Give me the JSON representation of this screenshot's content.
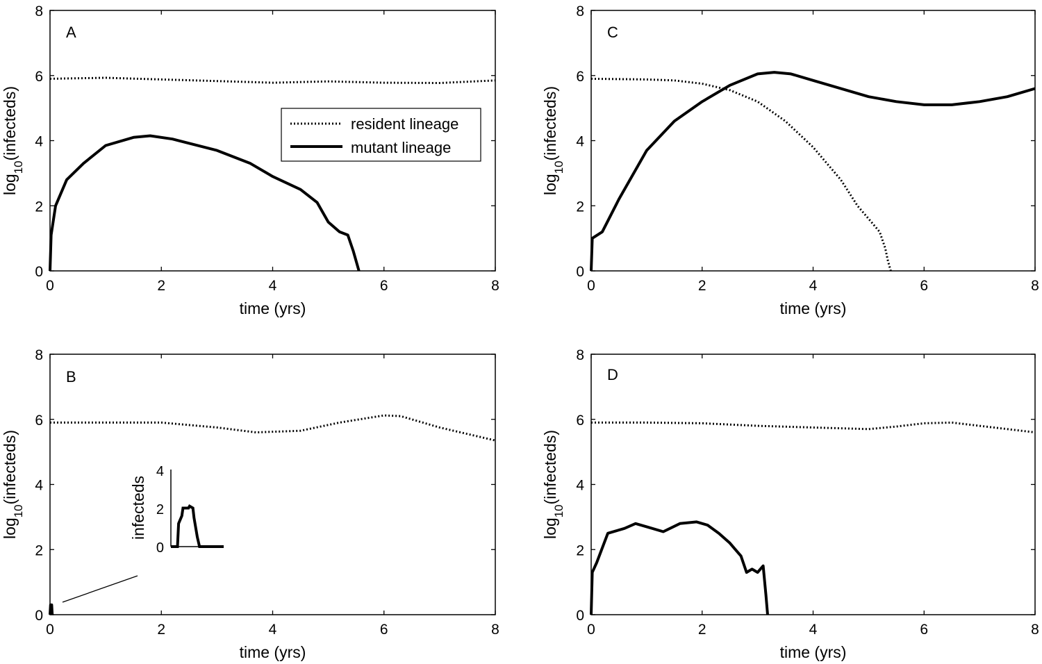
{
  "figure": {
    "legend": {
      "resident": "resident lineage",
      "mutant": "mutant lineage"
    },
    "inset": {
      "ylabel": "infecteds",
      "yticks": [
        "0",
        "2",
        "4"
      ]
    }
  },
  "chart_data": [
    {
      "type": "line",
      "panel": "A",
      "xlabel": "time (yrs)",
      "ylabel": "log10(infecteds)",
      "xlim": [
        0,
        8
      ],
      "ylim": [
        0,
        8
      ],
      "xticks": [
        0,
        2,
        4,
        6,
        8
      ],
      "yticks": [
        0,
        2,
        4,
        6,
        8
      ],
      "series": [
        {
          "name": "resident lineage",
          "style": "dotted",
          "x": [
            0,
            1,
            2,
            3,
            4,
            5,
            6,
            7,
            8
          ],
          "y": [
            5.9,
            5.93,
            5.88,
            5.83,
            5.78,
            5.82,
            5.78,
            5.77,
            5.85
          ]
        },
        {
          "name": "mutant lineage",
          "style": "solid",
          "x": [
            0,
            0.02,
            0.1,
            0.3,
            0.6,
            1,
            1.5,
            1.8,
            2.2,
            3,
            3.6,
            4,
            4.5,
            4.8,
            5,
            5.2,
            5.35,
            5.45,
            5.5,
            5.55
          ],
          "y": [
            0,
            1.1,
            2,
            2.8,
            3.3,
            3.85,
            4.1,
            4.15,
            4.05,
            3.7,
            3.3,
            2.9,
            2.5,
            2.1,
            1.5,
            1.2,
            1.1,
            0.6,
            0.3,
            0
          ]
        }
      ]
    },
    {
      "type": "line",
      "panel": "B",
      "xlabel": "time (yrs)",
      "ylabel": "log10(infecteds)",
      "xlim": [
        0,
        8
      ],
      "ylim": [
        0,
        8
      ],
      "xticks": [
        0,
        2,
        4,
        6,
        8
      ],
      "yticks": [
        0,
        2,
        4,
        6,
        8
      ],
      "series": [
        {
          "name": "resident lineage",
          "style": "dotted",
          "x": [
            0,
            1,
            2,
            3,
            3.7,
            4.5,
            5.2,
            6,
            6.3,
            7,
            8
          ],
          "y": [
            5.9,
            5.9,
            5.9,
            5.75,
            5.6,
            5.65,
            5.9,
            6.12,
            6.1,
            5.75,
            5.35
          ]
        },
        {
          "name": "mutant lineage",
          "style": "solid",
          "x": [
            0,
            0.01,
            0.02,
            0.03,
            0.04
          ],
          "y": [
            0,
            0.3,
            0.3,
            0.3,
            0
          ]
        }
      ],
      "inset": {
        "ylim": [
          0,
          4
        ],
        "x": [
          0,
          0.3,
          0.35,
          0.5,
          0.55,
          0.8,
          0.85,
          1,
          1.05,
          1.2,
          1.3,
          2.4
        ],
        "y": [
          0,
          0,
          1.2,
          1.6,
          2,
          2,
          2.1,
          2,
          1.5,
          0.5,
          0,
          0
        ]
      }
    },
    {
      "type": "line",
      "panel": "C",
      "xlabel": "time (yrs)",
      "ylabel": "log10(infecteds)",
      "xlim": [
        0,
        8
      ],
      "ylim": [
        0,
        8
      ],
      "xticks": [
        0,
        2,
        4,
        6,
        8
      ],
      "yticks": [
        0,
        2,
        4,
        6,
        8
      ],
      "series": [
        {
          "name": "resident lineage",
          "style": "dotted",
          "x": [
            0,
            1,
            1.5,
            2,
            2.5,
            3,
            3.5,
            4,
            4.5,
            4.8,
            5,
            5.2,
            5.3,
            5.35,
            5.4
          ],
          "y": [
            5.9,
            5.88,
            5.85,
            5.75,
            5.55,
            5.2,
            4.6,
            3.8,
            2.8,
            2.0,
            1.6,
            1.2,
            0.7,
            0.3,
            0
          ]
        },
        {
          "name": "mutant lineage",
          "style": "solid",
          "x": [
            0,
            0.02,
            0.2,
            0.5,
            1,
            1.5,
            2,
            2.5,
            3,
            3.3,
            3.6,
            4,
            5,
            5.5,
            6,
            6.5,
            7,
            7.5,
            8
          ],
          "y": [
            0,
            1,
            1.2,
            2.2,
            3.7,
            4.6,
            5.2,
            5.7,
            6.05,
            6.1,
            6.05,
            5.85,
            5.35,
            5.2,
            5.1,
            5.1,
            5.2,
            5.35,
            5.6
          ]
        }
      ]
    },
    {
      "type": "line",
      "panel": "D",
      "xlabel": "time (yrs)",
      "ylabel": "log10(infecteds)",
      "xlim": [
        0,
        8
      ],
      "ylim": [
        0,
        8
      ],
      "xticks": [
        0,
        2,
        4,
        6,
        8
      ],
      "yticks": [
        0,
        2,
        4,
        6,
        8
      ],
      "series": [
        {
          "name": "resident lineage",
          "style": "dotted",
          "x": [
            0,
            1,
            2,
            3,
            4,
            5,
            5.5,
            6,
            6.5,
            7,
            8
          ],
          "y": [
            5.9,
            5.9,
            5.88,
            5.8,
            5.75,
            5.7,
            5.78,
            5.88,
            5.9,
            5.8,
            5.6
          ]
        },
        {
          "name": "mutant lineage",
          "style": "solid",
          "x": [
            0,
            0.02,
            0.1,
            0.3,
            0.6,
            0.8,
            1,
            1.3,
            1.6,
            1.9,
            2.1,
            2.3,
            2.5,
            2.6,
            2.7,
            2.8,
            2.9,
            3.0,
            3.1,
            3.15,
            3.18
          ],
          "y": [
            0,
            1.3,
            1.6,
            2.5,
            2.65,
            2.8,
            2.7,
            2.55,
            2.8,
            2.85,
            2.75,
            2.5,
            2.2,
            2.0,
            1.8,
            1.3,
            1.4,
            1.3,
            1.5,
            0.6,
            0
          ]
        }
      ]
    }
  ]
}
